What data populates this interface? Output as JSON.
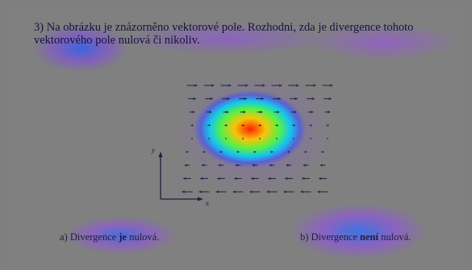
{
  "question": {
    "number": "3)",
    "text": "Na obrázku je znázorněno vektorové pole. Rozhodni, zda je divergence tohoto vektorového pole nulová či nikoliv."
  },
  "figure": {
    "axis_y_label": "y",
    "axis_x_label": "x"
  },
  "answers": [
    {
      "prefix": "a) Divergence ",
      "emphasis": "je",
      "suffix": " nulová."
    },
    {
      "prefix": "b) Divergence ",
      "emphasis": "není",
      "suffix": " nulová."
    }
  ],
  "colors": {
    "text": "#14143c",
    "arrow": "#28284a",
    "heatmap_hot": "#ff2a00",
    "heatmap_cool": "#7a3cff"
  }
}
